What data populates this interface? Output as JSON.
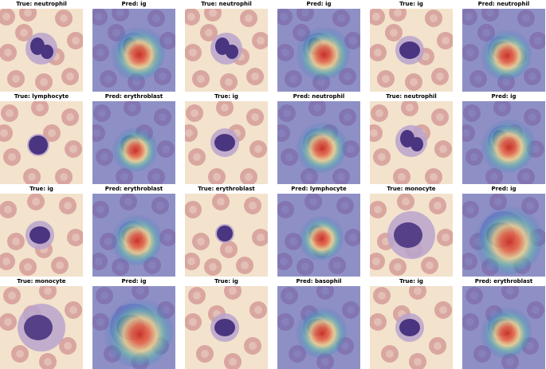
{
  "panels": [
    {
      "title": "True: neutrophil",
      "kind": "original",
      "cell": "neutrophil"
    },
    {
      "title": "Pred: ig",
      "kind": "heatmap",
      "cell": "neutrophil"
    },
    {
      "title": "True: neutrophil",
      "kind": "original",
      "cell": "neutrophil"
    },
    {
      "title": "Pred: ig",
      "kind": "heatmap",
      "cell": "neutrophil"
    },
    {
      "title": "True: ig",
      "kind": "original",
      "cell": "ig"
    },
    {
      "title": "Pred: neutrophil",
      "kind": "heatmap",
      "cell": "ig"
    },
    {
      "title": "True: lymphocyte",
      "kind": "original",
      "cell": "lymphocyte"
    },
    {
      "title": "Pred: erythroblast",
      "kind": "heatmap",
      "cell": "lymphocyte"
    },
    {
      "title": "True: ig",
      "kind": "original",
      "cell": "ig"
    },
    {
      "title": "Pred: neutrophil",
      "kind": "heatmap",
      "cell": "ig"
    },
    {
      "title": "True: neutrophil",
      "kind": "original",
      "cell": "neutrophil"
    },
    {
      "title": "Pred: ig",
      "kind": "heatmap",
      "cell": "neutrophil"
    },
    {
      "title": "True: ig",
      "kind": "original",
      "cell": "ig"
    },
    {
      "title": "Pred: erythroblast",
      "kind": "heatmap",
      "cell": "ig"
    },
    {
      "title": "True: erythroblast",
      "kind": "original",
      "cell": "erythroblast"
    },
    {
      "title": "Pred: lymphocyte",
      "kind": "heatmap",
      "cell": "erythroblast"
    },
    {
      "title": "True: monocyte",
      "kind": "original",
      "cell": "monocyte"
    },
    {
      "title": "Pred: ig",
      "kind": "heatmap",
      "cell": "monocyte"
    },
    {
      "title": "True: monocyte",
      "kind": "original",
      "cell": "monocyte"
    },
    {
      "title": "Pred: ig",
      "kind": "heatmap",
      "cell": "monocyte"
    },
    {
      "title": "True: ig",
      "kind": "original",
      "cell": "ig"
    },
    {
      "title": "Pred: basophil",
      "kind": "heatmap",
      "cell": "ig"
    },
    {
      "title": "True: ig",
      "kind": "original",
      "cell": "ig"
    },
    {
      "title": "Pred: erythroblast",
      "kind": "heatmap",
      "cell": "ig"
    }
  ],
  "colors": {
    "background_cream": "#f3e2cc",
    "rbc": "#d9a6a0",
    "rbc_center": "#ead0c4",
    "nucleus": "#4a3580",
    "cytoplasm": "#b9a3cc",
    "heat_base": "#3b4cc0"
  }
}
